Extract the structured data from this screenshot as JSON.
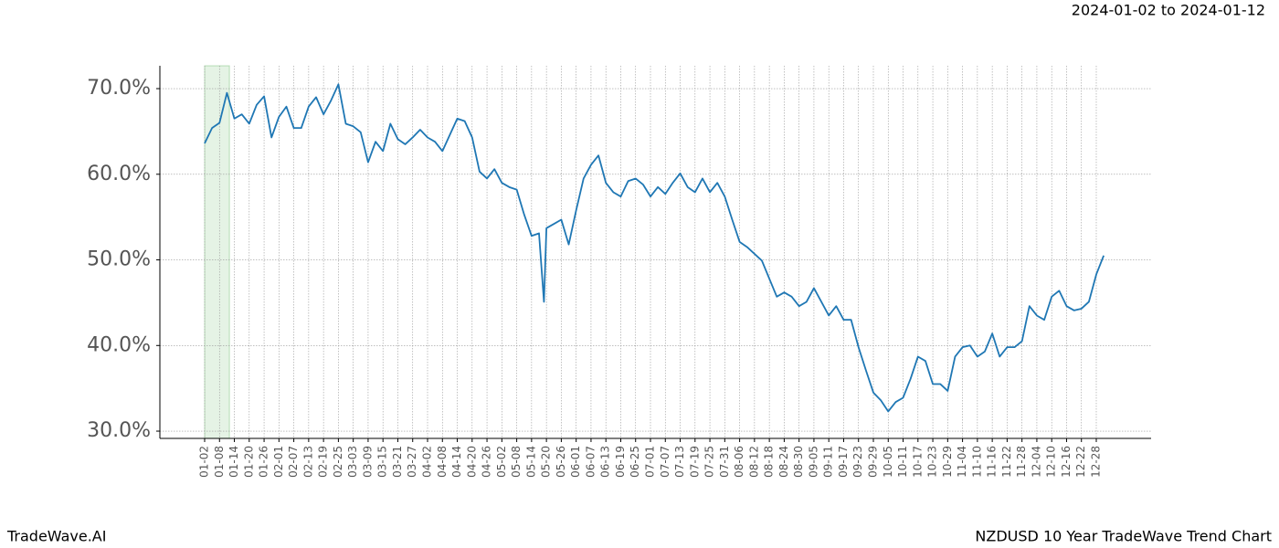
{
  "chart_data": {
    "type": "line",
    "date_range": "2024-01-02 to 2024-01-12",
    "footer_left": "TradeWave.AI",
    "footer_right": "NZDUSD 10 Year TradeWave Trend Chart",
    "highlight": {
      "start": "01-02",
      "end": "01-12",
      "color": "#2ca02c"
    },
    "ylim": [
      29.15,
      72.67
    ],
    "yticks": [
      {
        "value": 30,
        "label": "30.0%"
      },
      {
        "value": 40,
        "label": "40.0%"
      },
      {
        "value": 50,
        "label": "50.0%"
      },
      {
        "value": 60,
        "label": "60.0%"
      },
      {
        "value": 70,
        "label": "70.0%"
      }
    ],
    "xticks": [
      "01-02",
      "01-08",
      "01-14",
      "01-20",
      "01-26",
      "02-01",
      "02-07",
      "02-13",
      "02-19",
      "02-25",
      "03-03",
      "03-09",
      "03-15",
      "03-21",
      "03-27",
      "04-02",
      "04-08",
      "04-14",
      "04-20",
      "04-26",
      "05-02",
      "05-08",
      "05-14",
      "05-20",
      "05-26",
      "06-01",
      "06-07",
      "06-13",
      "06-19",
      "06-25",
      "07-01",
      "07-07",
      "07-13",
      "07-19",
      "07-25",
      "07-31",
      "08-06",
      "08-12",
      "08-18",
      "08-24",
      "08-30",
      "09-05",
      "09-11",
      "09-17",
      "09-23",
      "09-29",
      "10-05",
      "10-11",
      "10-17",
      "10-23",
      "10-29",
      "11-04",
      "11-10",
      "11-16",
      "11-22",
      "11-28",
      "12-04",
      "12-10",
      "12-16",
      "12-22",
      "12-28"
    ],
    "grid": true,
    "series": [
      {
        "color": "#1f77b4",
        "x": [
          "01-02",
          "01-05",
          "01-08",
          "01-11",
          "01-14",
          "01-17",
          "01-20",
          "01-23",
          "01-26",
          "01-29",
          "02-01",
          "02-04",
          "02-07",
          "02-10",
          "02-13",
          "02-16",
          "02-19",
          "02-22",
          "02-25",
          "02-28",
          "03-03",
          "03-06",
          "03-09",
          "03-12",
          "03-15",
          "03-18",
          "03-21",
          "03-24",
          "03-27",
          "03-30",
          "04-02",
          "04-05",
          "04-08",
          "04-11",
          "04-14",
          "04-17",
          "04-20",
          "04-23",
          "04-26",
          "04-29",
          "05-02",
          "05-05",
          "05-08",
          "05-11",
          "05-14",
          "05-17",
          "05-19",
          "05-20",
          "05-23",
          "05-26",
          "05-29",
          "06-01",
          "06-04",
          "06-07",
          "06-10",
          "06-13",
          "06-16",
          "06-19",
          "06-22",
          "06-25",
          "06-28",
          "07-01",
          "07-04",
          "07-07",
          "07-10",
          "07-13",
          "07-16",
          "07-19",
          "07-22",
          "07-25",
          "07-28",
          "07-31",
          "08-03",
          "08-06",
          "08-09",
          "08-12",
          "08-15",
          "08-18",
          "08-21",
          "08-24",
          "08-27",
          "08-30",
          "09-02",
          "09-05",
          "09-08",
          "09-11",
          "09-14",
          "09-17",
          "09-20",
          "09-23",
          "09-26",
          "09-29",
          "10-02",
          "10-05",
          "10-08",
          "10-11",
          "10-14",
          "10-17",
          "10-20",
          "10-23",
          "10-26",
          "10-29",
          "11-01",
          "11-04",
          "11-07",
          "11-10",
          "11-13",
          "11-16",
          "11-19",
          "11-22",
          "11-25",
          "11-28",
          "12-01",
          "12-04",
          "12-07",
          "12-10",
          "12-13",
          "12-16",
          "12-19",
          "12-22",
          "12-25",
          "12-28",
          "12-31"
        ],
        "values": [
          63.6,
          65.4,
          66.0,
          69.5,
          66.5,
          67.0,
          65.9,
          68.1,
          69.1,
          64.3,
          66.7,
          67.9,
          65.4,
          65.4,
          67.9,
          69.0,
          67.0,
          68.6,
          70.5,
          65.9,
          65.6,
          64.9,
          61.4,
          63.8,
          62.7,
          65.9,
          64.1,
          63.5,
          64.3,
          65.2,
          64.3,
          63.8,
          62.7,
          64.6,
          66.5,
          66.2,
          64.3,
          60.3,
          59.5,
          60.6,
          59.0,
          58.5,
          58.2,
          55.3,
          52.8,
          53.1,
          45.1,
          53.7,
          54.2,
          54.7,
          51.8,
          55.8,
          59.5,
          61.1,
          62.2,
          59.0,
          57.9,
          57.4,
          59.2,
          59.5,
          58.8,
          57.4,
          58.5,
          57.7,
          59.0,
          60.1,
          58.5,
          57.9,
          59.5,
          57.9,
          59.0,
          57.4,
          54.7,
          52.1,
          51.5,
          50.7,
          49.9,
          47.8,
          45.7,
          46.2,
          45.7,
          44.6,
          45.1,
          46.7,
          45.1,
          43.5,
          44.6,
          43.0,
          43.0,
          39.8,
          37.1,
          34.5,
          33.6,
          32.3,
          33.4,
          33.9,
          36.1,
          38.7,
          38.2,
          35.5,
          35.5,
          34.7,
          38.7,
          39.8,
          40.0,
          38.7,
          39.3,
          41.4,
          38.7,
          39.8,
          39.8,
          40.5,
          44.6,
          43.5,
          43.0,
          45.7,
          46.4,
          44.6,
          44.1,
          44.3,
          45.1,
          48.3,
          50.5
        ]
      }
    ]
  }
}
